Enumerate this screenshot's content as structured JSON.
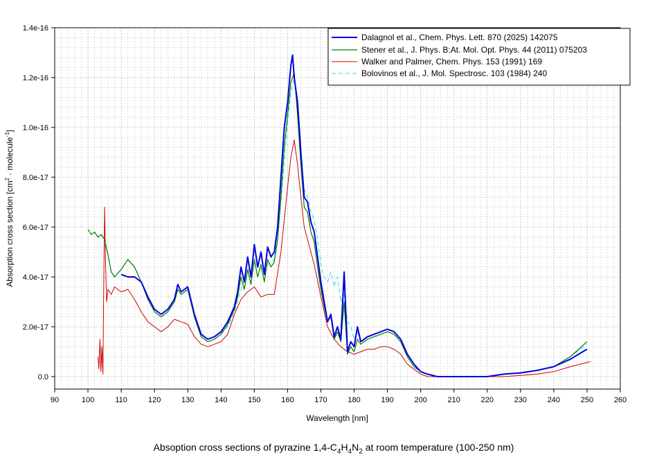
{
  "chart_data": {
    "type": "line",
    "caption_parts": {
      "prefix": "Absoption cross sections of pyrazine 1,4-C",
      "sub1": "4",
      "mid1": "H",
      "sub2": "4",
      "mid2": "N",
      "sub3": "2",
      "suffix": " at room temperature (100-250 nm)"
    },
    "xlabel": "Wavelength [nm]",
    "ylabel_parts": {
      "prefix": "Absorption cross section [cm",
      "sup1": "2",
      "mid": " · molecule",
      "sup2": "-1",
      "suffix": "]"
    },
    "xlim": [
      90,
      260
    ],
    "ylim": [
      -0.05,
      1.4
    ],
    "y_scale_label": "1e-16",
    "x_ticks": [
      "90",
      "100",
      "110",
      "120",
      "130",
      "140",
      "150",
      "160",
      "170",
      "180",
      "190",
      "200",
      "210",
      "220",
      "230",
      "240",
      "250",
      "260"
    ],
    "y_ticks": [
      {
        "value": 0.0,
        "label": "0.0"
      },
      {
        "value": 0.2,
        "label": "2.0e-17"
      },
      {
        "value": 0.4,
        "label": "4.0e-17"
      },
      {
        "value": 0.6,
        "label": "6.0e-17"
      },
      {
        "value": 0.8,
        "label": "8.0e-17"
      },
      {
        "value": 1.0,
        "label": "1.0e-16"
      },
      {
        "value": 1.2,
        "label": "1.2e-16"
      },
      {
        "value": 1.4,
        "label": "1.4e-16"
      }
    ],
    "grid": true,
    "legend_position": "top-right",
    "series": [
      {
        "name": "Dalagnol et al., Chem. Phys. Lett. 870 (2025) 142075",
        "color": "#0000dd",
        "width": 2,
        "dash": "",
        "x": [
          110,
          112,
          114,
          116,
          118,
          120,
          122,
          124,
          126,
          127,
          128,
          129,
          130,
          132,
          134,
          136,
          138,
          140,
          142,
          144,
          145,
          146,
          147,
          148,
          149,
          150,
          151,
          152,
          153,
          154,
          155,
          156,
          157,
          158,
          159,
          160,
          161,
          161.5,
          162,
          163,
          164,
          165,
          166,
          167,
          168,
          169,
          170,
          171,
          172,
          173,
          174,
          175,
          176,
          177,
          178,
          179,
          180,
          181,
          182,
          184,
          186,
          188,
          190,
          192,
          194,
          196,
          198,
          200,
          202,
          205,
          210,
          215,
          220,
          225,
          230,
          235,
          240,
          245,
          250
        ],
        "y": [
          0.41,
          0.4,
          0.4,
          0.38,
          0.32,
          0.27,
          0.25,
          0.27,
          0.31,
          0.37,
          0.34,
          0.35,
          0.36,
          0.25,
          0.17,
          0.15,
          0.16,
          0.18,
          0.22,
          0.28,
          0.34,
          0.44,
          0.38,
          0.48,
          0.4,
          0.53,
          0.44,
          0.5,
          0.41,
          0.52,
          0.48,
          0.5,
          0.6,
          0.8,
          1.0,
          1.1,
          1.25,
          1.29,
          1.2,
          1.1,
          0.9,
          0.72,
          0.7,
          0.62,
          0.58,
          0.48,
          0.38,
          0.3,
          0.22,
          0.25,
          0.16,
          0.2,
          0.15,
          0.42,
          0.1,
          0.14,
          0.12,
          0.2,
          0.14,
          0.16,
          0.17,
          0.18,
          0.19,
          0.18,
          0.15,
          0.09,
          0.05,
          0.02,
          0.01,
          0.0,
          0.0,
          0.0,
          0.0,
          0.01,
          0.015,
          0.025,
          0.04,
          0.07,
          0.11
        ]
      },
      {
        "name": "Stener et al., J. Phys. B:At. Mol. Opt. Phys. 44 (2011) 075203",
        "color": "#007700",
        "width": 1.2,
        "dash": "",
        "x": [
          100,
          101,
          102,
          103,
          104,
          105,
          106,
          107,
          108,
          110,
          112,
          114,
          116,
          118,
          120,
          122,
          124,
          126,
          127,
          128,
          129,
          130,
          132,
          134,
          136,
          138,
          140,
          142,
          144,
          145,
          146,
          147,
          148,
          149,
          150,
          151,
          152,
          153,
          154,
          155,
          156,
          157,
          158,
          159,
          160,
          161,
          162,
          163,
          164,
          165,
          166,
          167,
          168,
          169,
          170,
          171,
          172,
          173,
          174,
          175,
          176,
          177,
          178,
          179,
          180,
          181,
          182,
          184,
          186,
          188,
          190,
          192,
          194,
          196,
          198,
          200,
          202,
          205,
          210,
          215,
          220,
          225,
          230,
          235,
          240,
          245,
          250
        ],
        "y": [
          0.59,
          0.57,
          0.58,
          0.56,
          0.57,
          0.55,
          0.49,
          0.42,
          0.4,
          0.43,
          0.47,
          0.44,
          0.38,
          0.31,
          0.26,
          0.24,
          0.26,
          0.3,
          0.35,
          0.33,
          0.34,
          0.35,
          0.24,
          0.16,
          0.14,
          0.15,
          0.17,
          0.21,
          0.27,
          0.32,
          0.4,
          0.35,
          0.43,
          0.37,
          0.47,
          0.4,
          0.45,
          0.38,
          0.47,
          0.44,
          0.46,
          0.55,
          0.72,
          0.92,
          1.05,
          1.18,
          1.22,
          1.05,
          0.85,
          0.68,
          0.66,
          0.58,
          0.54,
          0.44,
          0.35,
          0.28,
          0.22,
          0.24,
          0.15,
          0.18,
          0.14,
          0.3,
          0.09,
          0.12,
          0.1,
          0.15,
          0.13,
          0.15,
          0.16,
          0.17,
          0.18,
          0.17,
          0.14,
          0.08,
          0.04,
          0.02,
          0.01,
          0.0,
          0.0,
          0.0,
          0.0,
          0.01,
          0.015,
          0.025,
          0.04,
          0.08,
          0.14
        ]
      },
      {
        "name": "Walker and Palmer, Chem. Phys. 153 (1991) 169",
        "color": "#cc0000",
        "width": 1,
        "dash": "",
        "x": [
          103,
          103.3,
          103.6,
          103.9,
          104.2,
          104.5,
          104.7,
          105,
          105.3,
          105.6,
          106,
          107,
          108,
          110,
          112,
          114,
          116,
          118,
          120,
          122,
          124,
          126,
          128,
          130,
          132,
          134,
          136,
          138,
          140,
          142,
          144,
          146,
          148,
          150,
          152,
          154,
          156,
          158,
          160,
          161,
          162,
          163,
          164,
          165,
          166,
          168,
          170,
          172,
          174,
          176,
          178,
          180,
          182,
          184,
          186,
          188,
          190,
          192,
          194,
          196,
          198,
          200,
          202,
          205,
          210,
          215,
          220,
          225,
          230,
          235,
          240,
          245,
          251
        ],
        "y": [
          0.08,
          0.03,
          0.15,
          0.02,
          0.12,
          0.01,
          0.3,
          0.68,
          0.45,
          0.3,
          0.35,
          0.33,
          0.36,
          0.34,
          0.35,
          0.31,
          0.26,
          0.22,
          0.2,
          0.18,
          0.2,
          0.23,
          0.22,
          0.21,
          0.16,
          0.13,
          0.12,
          0.13,
          0.14,
          0.17,
          0.25,
          0.31,
          0.34,
          0.36,
          0.32,
          0.33,
          0.33,
          0.5,
          0.76,
          0.88,
          0.95,
          0.85,
          0.72,
          0.6,
          0.55,
          0.45,
          0.32,
          0.2,
          0.15,
          0.12,
          0.1,
          0.09,
          0.1,
          0.11,
          0.11,
          0.12,
          0.12,
          0.11,
          0.09,
          0.05,
          0.03,
          0.01,
          0.0,
          0.0,
          0.0,
          0.0,
          0.0,
          0.0,
          0.005,
          0.01,
          0.02,
          0.04,
          0.06
        ]
      },
      {
        "name": "Bolovinos et al., J. Mol. Spectrosc. 103 (1984) 240",
        "color": "#22dddd",
        "width": 1,
        "dash": "6,4",
        "x": [
          140,
          142,
          144,
          146,
          148,
          150,
          152,
          154,
          156,
          158,
          160,
          161,
          162,
          163,
          164,
          165,
          166,
          167,
          168,
          169,
          170,
          171,
          172,
          173,
          174,
          175,
          176,
          177,
          178,
          179,
          180,
          181,
          182,
          184,
          186,
          188,
          190,
          192,
          194,
          196,
          198,
          200,
          202,
          205,
          210,
          215,
          220,
          225,
          230,
          235,
          240,
          245,
          250
        ],
        "y": [
          0.17,
          0.2,
          0.26,
          0.35,
          0.42,
          0.46,
          0.43,
          0.45,
          0.47,
          0.7,
          1.02,
          1.14,
          1.2,
          1.08,
          0.9,
          0.75,
          0.72,
          0.66,
          0.63,
          0.55,
          0.45,
          0.4,
          0.38,
          0.42,
          0.36,
          0.4,
          0.3,
          0.33,
          0.22,
          0.2,
          0.15,
          0.18,
          0.14,
          0.16,
          0.17,
          0.18,
          0.19,
          0.18,
          0.15,
          0.08,
          0.04,
          0.02,
          0.01,
          0.0,
          0.0,
          0.0,
          0.0,
          0.01,
          0.015,
          0.025,
          0.04,
          0.08,
          0.13
        ]
      }
    ]
  }
}
